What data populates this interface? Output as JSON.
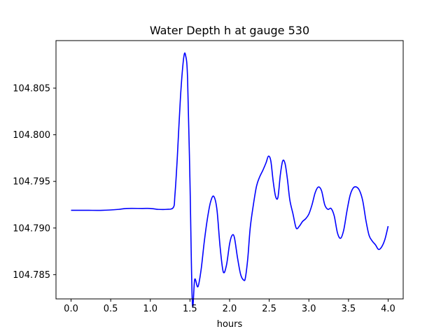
{
  "chart_data": {
    "type": "line",
    "title": "Water Depth h at gauge 530",
    "xlabel": "hours",
    "ylabel": "",
    "xlim": [
      -0.19,
      4.19
    ],
    "ylim": [
      104.7824,
      104.8101
    ],
    "grid": false,
    "legend": "none",
    "xticks": [
      0.0,
      0.5,
      1.0,
      1.5,
      2.0,
      2.5,
      3.0,
      3.5,
      4.0
    ],
    "xtick_labels": [
      "0.0",
      "0.5",
      "1.0",
      "1.5",
      "2.0",
      "2.5",
      "3.0",
      "3.5",
      "4.0"
    ],
    "yticks": [
      104.785,
      104.79,
      104.795,
      104.8,
      104.805
    ],
    "ytick_labels": [
      "104.785",
      "104.790",
      "104.795",
      "104.800",
      "104.805"
    ],
    "series": [
      {
        "color": "#0000ff",
        "x": [
          0.0,
          0.2,
          0.4,
          0.6,
          0.7,
          0.9,
          1.0,
          1.1,
          1.2,
          1.29,
          1.31,
          1.34,
          1.38,
          1.42,
          1.445,
          1.47,
          1.5,
          1.53,
          1.56,
          1.6,
          1.64,
          1.68,
          1.72,
          1.76,
          1.8,
          1.84,
          1.88,
          1.92,
          1.96,
          2.0,
          2.03,
          2.06,
          2.1,
          2.14,
          2.18,
          2.2,
          2.23,
          2.26,
          2.3,
          2.34,
          2.38,
          2.42,
          2.46,
          2.49,
          2.52,
          2.55,
          2.58,
          2.61,
          2.64,
          2.67,
          2.7,
          2.73,
          2.76,
          2.8,
          2.84,
          2.88,
          2.92,
          2.96,
          3.0,
          3.04,
          3.08,
          3.12,
          3.16,
          3.2,
          3.24,
          3.28,
          3.32,
          3.36,
          3.4,
          3.44,
          3.48,
          3.52,
          3.56,
          3.6,
          3.64,
          3.68,
          3.72,
          3.76,
          3.8,
          3.84,
          3.88,
          3.92,
          3.96,
          4.0
        ],
        "y": [
          104.7919,
          104.7919,
          104.7919,
          104.792,
          104.7921,
          104.7921,
          104.7921,
          104.792,
          104.792,
          104.7922,
          104.7935,
          104.7975,
          104.804,
          104.8082,
          104.8085,
          104.806,
          104.795,
          104.782,
          104.7845,
          104.7837,
          104.7855,
          104.7885,
          104.791,
          104.7928,
          104.7934,
          104.792,
          104.788,
          104.7853,
          104.786,
          104.7883,
          104.7892,
          104.789,
          104.7868,
          104.785,
          104.7844,
          104.7847,
          104.7868,
          104.79,
          104.7925,
          104.7945,
          104.7955,
          104.7962,
          104.797,
          104.7977,
          104.7972,
          104.795,
          104.7934,
          104.7933,
          104.7957,
          104.7972,
          104.7969,
          104.7952,
          104.793,
          104.7915,
          104.79,
          104.7902,
          104.7907,
          104.791,
          104.7915,
          104.7925,
          104.7938,
          104.7944,
          104.794,
          104.7925,
          104.792,
          104.7921,
          104.7913,
          104.7895,
          104.7889,
          104.7898,
          104.7918,
          104.7935,
          104.7943,
          104.7944,
          104.794,
          104.7929,
          104.7908,
          104.7892,
          104.7886,
          104.7882,
          104.7877,
          104.788,
          104.7888,
          104.7902
        ]
      }
    ]
  }
}
